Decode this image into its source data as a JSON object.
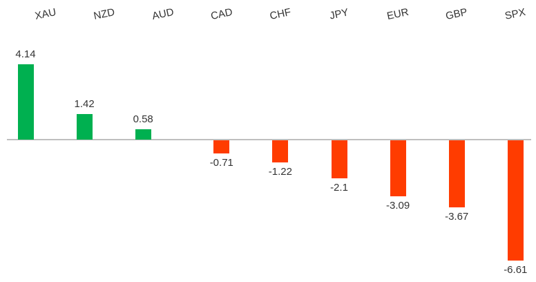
{
  "chart_data": {
    "type": "bar",
    "title": "",
    "xlabel": "",
    "ylabel": "",
    "categories": [
      "XAU",
      "NZD",
      "AUD",
      "CAD",
      "CHF",
      "JPY",
      "EUR",
      "GBP",
      "SPX"
    ],
    "values": [
      4.14,
      1.42,
      0.58,
      -0.71,
      -1.22,
      -2.1,
      -3.09,
      -3.67,
      -6.61
    ],
    "value_labels": [
      "4.14",
      "1.42",
      "0.58",
      "-0.71",
      "-1.22",
      "-2.1",
      "-3.09",
      "-3.67",
      "-6.61"
    ],
    "ylim": [
      -7.0,
      4.6
    ],
    "grid": false,
    "legend": "none",
    "category_label_position": "top",
    "category_label_rotation_deg": -12,
    "data_labels_visible": true,
    "colors": {
      "positive_bar": "#00B050",
      "negative_bar": "#FF3C00",
      "axis_line": "#BFBFBF",
      "label_text": "#333333",
      "background": "#FFFFFF"
    }
  }
}
